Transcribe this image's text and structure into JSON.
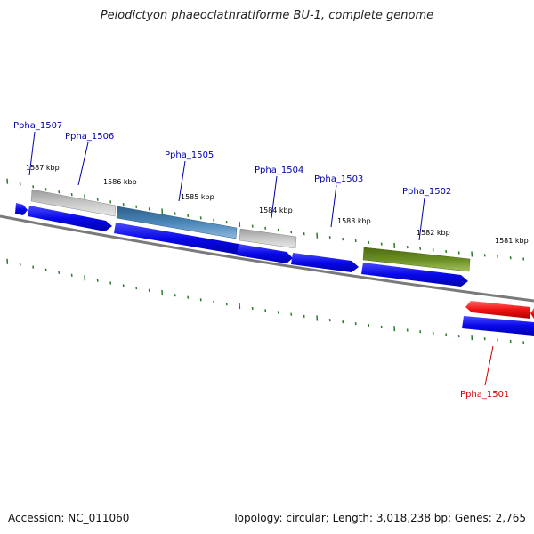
{
  "title": "Pelodictyon phaeoclathratiforme BU-1, complete genome",
  "footer": {
    "accession": "Accession: NC_011060",
    "summary": "Topology: circular; Length: 3,018,238 bp; Genes: 2,765"
  },
  "kbp_ticks": [
    "1587 kbp",
    "1586 kbp",
    "1585 kbp",
    "1584 kbp",
    "1583 kbp",
    "1582 kbp",
    "1581 kbp"
  ],
  "genes": [
    {
      "label": "Ppha_1507",
      "color": "#0000aa"
    },
    {
      "label": "Ppha_1506",
      "color": "#0000aa"
    },
    {
      "label": "Ppha_1505",
      "color": "#0000aa"
    },
    {
      "label": "Ppha_1504",
      "color": "#0000aa"
    },
    {
      "label": "Ppha_1503",
      "color": "#0000aa"
    },
    {
      "label": "Ppha_1502",
      "color": "#0000aa"
    },
    {
      "label": "Ppha_1501",
      "color": "#cc0000"
    }
  ],
  "colors": {
    "cds_forward": "#1010e0",
    "cds_reverse": "#ee1010",
    "gray_feature": "#b8b8b8",
    "steelblue_feature": "#4a86b8",
    "olive_feature": "#6b8e23",
    "backbone": "#808080",
    "tick": "#2a7a2a"
  }
}
